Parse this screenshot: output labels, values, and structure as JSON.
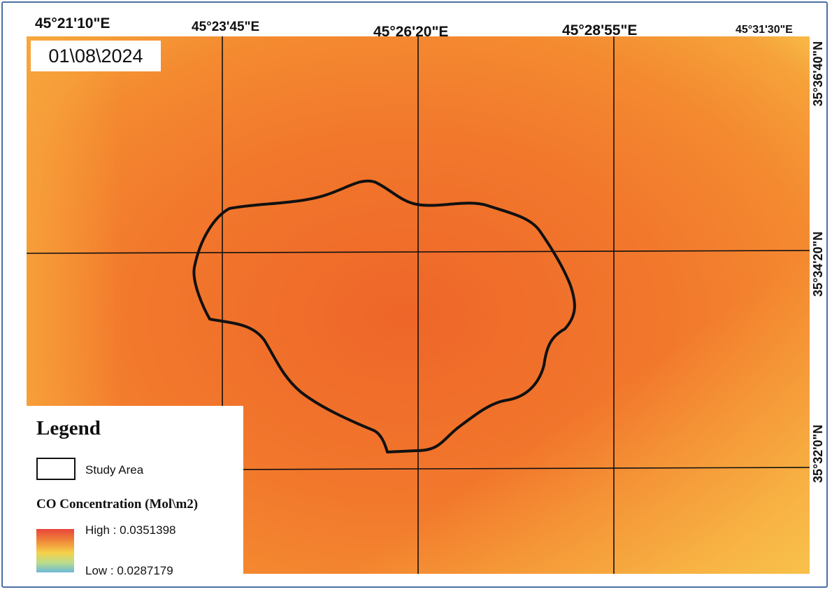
{
  "date": "01\\08\\2024",
  "longitude_labels": [
    "45°21'10\"E",
    "45°23'45\"E",
    "45°26'20\"E",
    "45°28'55\"E",
    "45°31'30\"E"
  ],
  "latitude_labels": [
    "35°36'40\"N",
    "35°34'20\"N",
    "35°32'0\"N"
  ],
  "legend": {
    "title": "Legend",
    "study_area_label": "Study Area",
    "variable_title": "CO Concentration (Mol\\m2)",
    "high_label": "High : 0.0351398",
    "low_label": "Low : 0.0287179"
  },
  "colors": {
    "surface_core": "#ef6a2a",
    "surface_mid": "#f4862f",
    "surface_edge": "#f8b84a",
    "grid": "#111111",
    "boundary": "#111111",
    "frame": "#4a6fa5"
  }
}
